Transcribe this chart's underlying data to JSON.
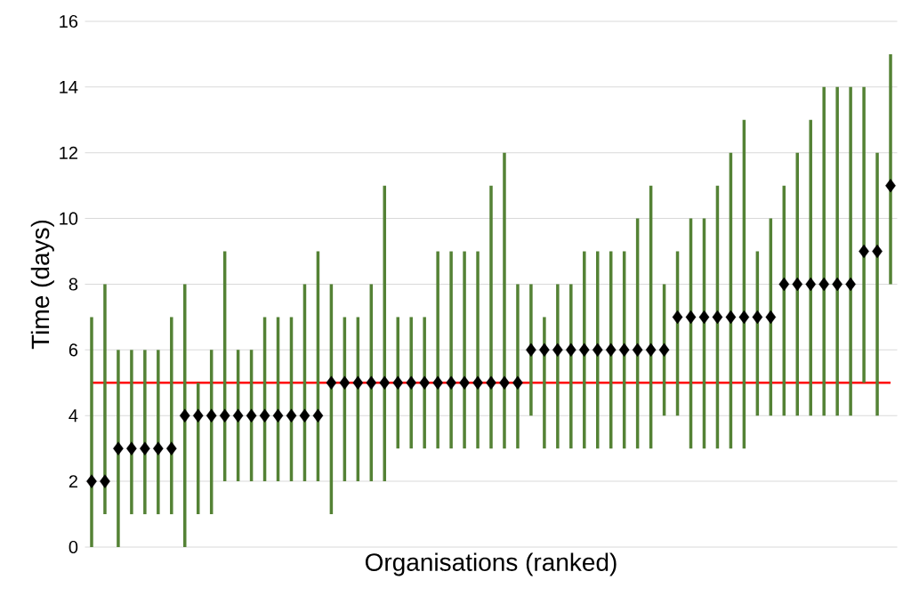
{
  "chart_data": {
    "type": "scatter",
    "xlabel": "Organisations (ranked)",
    "ylabel": "Time (days)",
    "categories": [
      null,
      null,
      null,
      null,
      null,
      null,
      null,
      null,
      null,
      null,
      null,
      null,
      null,
      null,
      null,
      null,
      null,
      null,
      null,
      null,
      null,
      null,
      null,
      null,
      null,
      null,
      null,
      null,
      null,
      null,
      null,
      null,
      null,
      null,
      null,
      null,
      null,
      null,
      null,
      null,
      null,
      null,
      null,
      null,
      null,
      null,
      null,
      null,
      null,
      null,
      null,
      null,
      null,
      null,
      null,
      null,
      null,
      null,
      null,
      null,
      null
    ],
    "series": [
      {
        "type": "bar",
        "color": "#548235",
        "base": [
          0,
          1,
          0,
          1,
          1,
          1,
          1,
          0,
          1,
          1,
          2,
          2,
          2,
          2,
          2,
          2,
          2,
          2,
          1,
          2,
          2,
          2,
          2,
          3,
          3,
          3,
          3,
          3,
          3,
          3,
          3,
          3,
          3,
          4,
          3,
          3,
          3,
          3,
          3,
          3,
          3,
          3,
          3,
          4,
          4,
          3,
          3,
          3,
          3,
          3,
          4,
          4,
          4,
          4,
          4,
          4,
          4,
          4,
          5,
          4,
          8
        ],
        "values": [
          7,
          7,
          6,
          5,
          5,
          5,
          6,
          8,
          4,
          5,
          7,
          4,
          4,
          5,
          5,
          5,
          6,
          7,
          7,
          5,
          5,
          6,
          9,
          4,
          4,
          4,
          6,
          6,
          6,
          6,
          8,
          9,
          5,
          4,
          4,
          5,
          5,
          6,
          6,
          6,
          6,
          7,
          8,
          4,
          5,
          7,
          7,
          8,
          9,
          10,
          5,
          6,
          7,
          8,
          9,
          10,
          10,
          10,
          9,
          8,
          7
        ]
      },
      {
        "color": "#000000",
        "marker": "diamond",
        "values": [
          2,
          2,
          3,
          3,
          3,
          3,
          3,
          4,
          4,
          4,
          4,
          4,
          4,
          4,
          4,
          4,
          4,
          4,
          5,
          5,
          5,
          5,
          5,
          5,
          5,
          5,
          5,
          5,
          5,
          5,
          5,
          5,
          5,
          6,
          6,
          6,
          6,
          6,
          6,
          6,
          6,
          6,
          6,
          6,
          7,
          7,
          7,
          7,
          7,
          7,
          7,
          7,
          8,
          8,
          8,
          8,
          8,
          8,
          9,
          9,
          11
        ]
      }
    ],
    "ylim": [
      0,
      16
    ],
    "yticks": [
      0,
      2,
      4,
      6,
      8,
      10,
      12,
      14,
      16
    ],
    "grid": "y",
    "ref_lines": [
      {
        "axis": "y",
        "value": 5,
        "color": "#ff0000"
      }
    ]
  }
}
